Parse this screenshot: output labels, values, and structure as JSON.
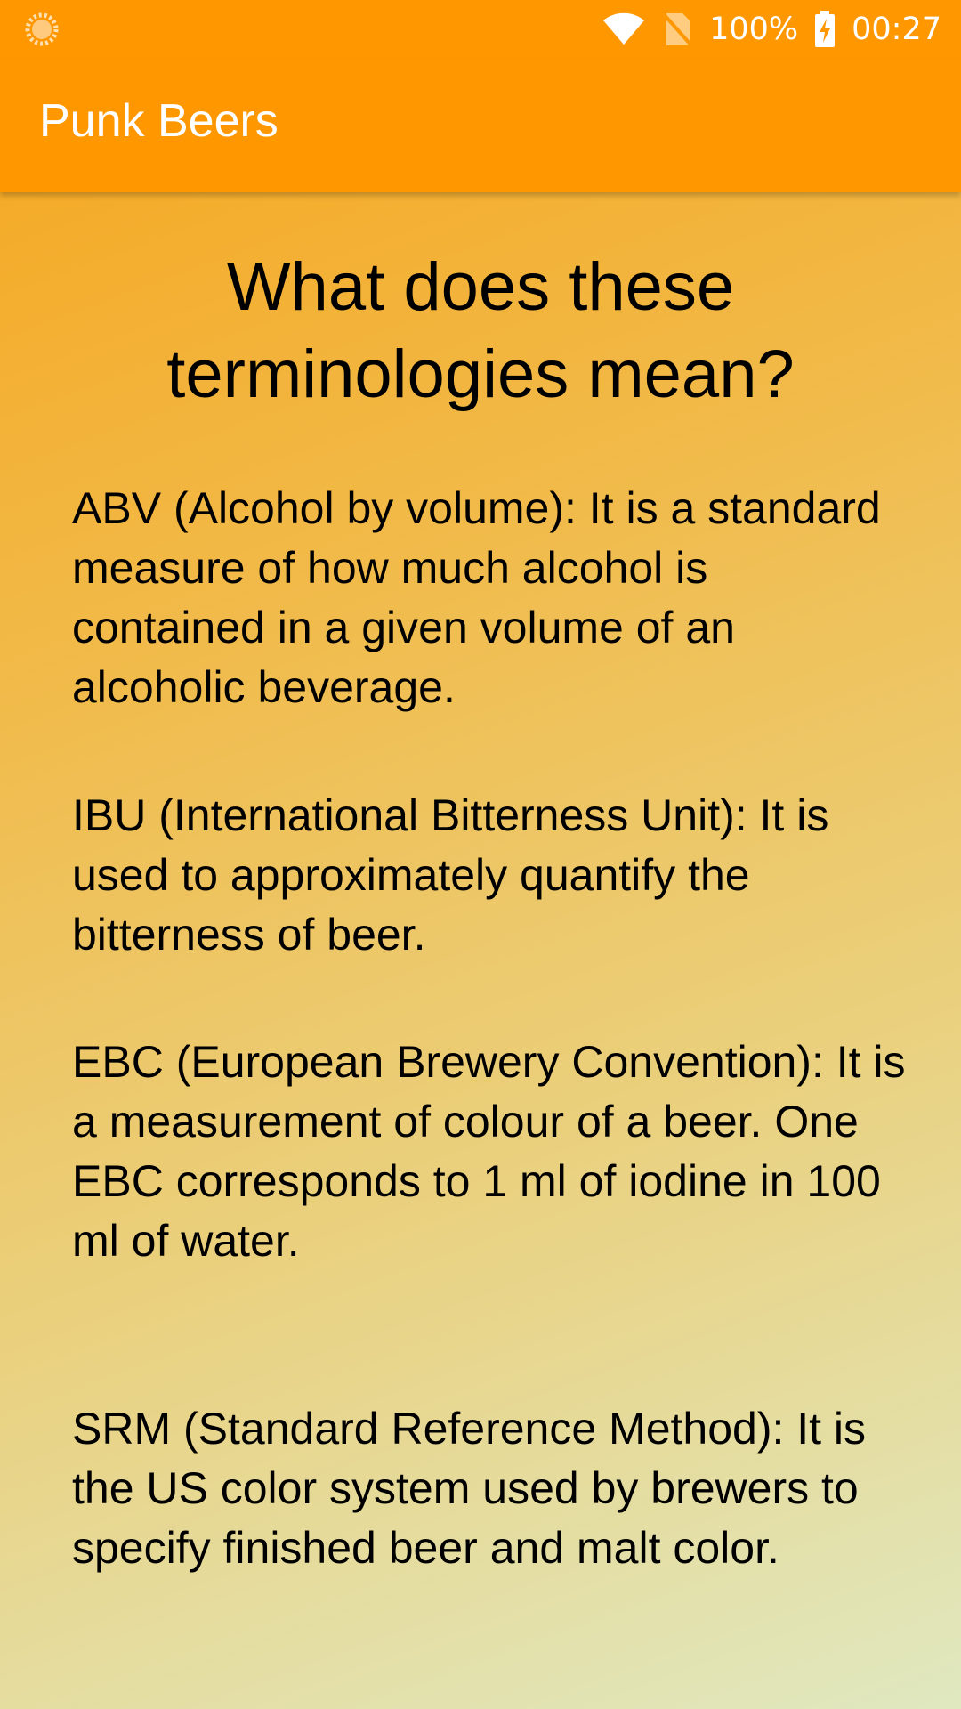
{
  "status_bar": {
    "battery": "100%",
    "time": "00:27",
    "icons": [
      "loading-spinner-icon",
      "wifi-icon",
      "no-sim-icon",
      "battery-charging-icon"
    ]
  },
  "app_bar": {
    "title": "Punk Beers"
  },
  "content": {
    "heading": "What does these terminologies mean?",
    "terms": [
      "ABV (Alcohol by volume): It is a standard measure of how much alcohol is contained in a given volume of an alcoholic beverage.",
      "IBU (International Bitterness Unit): It is used to approximately quantify the bitterness of beer.",
      "EBC (European Brewery Convention): It is a measurement of colour of a beer. One EBC corresponds to 1 ml of iodine in 100 ml of water.",
      "SRM (Standard Reference Method): It is the US color system used by brewers to specify finished beer and malt color."
    ]
  },
  "colors": {
    "primary": "#ff9800",
    "gradient_top": "#f6a51c",
    "gradient_bottom": "#e0e8c0"
  }
}
